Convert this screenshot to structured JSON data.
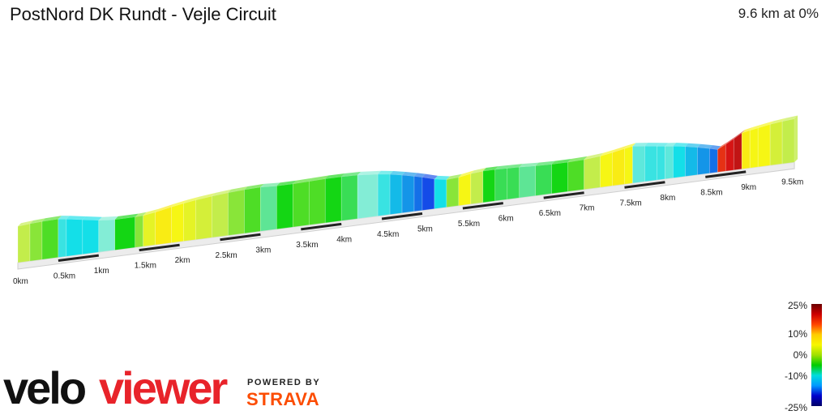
{
  "header": {
    "title": "PostNord DK Rundt - Vejle Circuit",
    "summary": "9.6 km at 0%"
  },
  "chart_data": {
    "type": "area",
    "title": "PostNord DK Rundt - Vejle Circuit",
    "x_unit": "km",
    "distance_km": 9.6,
    "avg_grade_pct": 0,
    "tick_labels": [
      "0km",
      "0.5km",
      "1km",
      "1.5km",
      "2km",
      "2.5km",
      "3km",
      "3.5km",
      "4km",
      "4.5km",
      "5km",
      "5.5km",
      "6km",
      "6.5km",
      "7km",
      "7.5km",
      "8km",
      "8.5km",
      "9km",
      "9.5km"
    ],
    "profile": {
      "x": [
        0,
        0.15,
        0.3,
        0.5,
        0.6,
        0.8,
        1.0,
        1.2,
        1.45,
        1.55,
        1.7,
        1.9,
        2.05,
        2.2,
        2.4,
        2.6,
        2.8,
        3.0,
        3.2,
        3.4,
        3.6,
        3.8,
        4.0,
        4.2,
        4.45,
        4.6,
        4.75,
        4.9,
        5.0,
        5.15,
        5.3,
        5.45,
        5.6,
        5.75,
        5.9,
        6.05,
        6.2,
        6.4,
        6.6,
        6.8,
        7.0,
        7.2,
        7.35,
        7.5,
        7.6,
        7.75,
        7.9,
        8.0,
        8.1,
        8.25,
        8.4,
        8.55,
        8.65,
        8.75,
        8.85,
        8.95,
        9.05,
        9.15,
        9.3,
        9.45,
        9.6
      ],
      "grade_pct": [
        3,
        3,
        2,
        1,
        -5,
        -6,
        -6,
        -3,
        0,
        2,
        5,
        7,
        6,
        5,
        4,
        3,
        2,
        1,
        -2,
        0,
        1,
        1,
        0,
        -1,
        -3,
        -5,
        -7,
        -8,
        -9,
        -10,
        -6,
        2,
        6,
        3,
        0,
        -1,
        -1,
        -2,
        -1,
        0,
        1,
        3,
        6,
        7,
        6,
        -4,
        -5,
        -5,
        -4,
        -6,
        -7,
        -8,
        -9,
        18,
        20,
        21,
        7,
        6,
        6,
        4,
        3
      ]
    },
    "legend": {
      "labels": [
        "25%",
        "10%",
        "0%",
        "-10%",
        "-25%"
      ],
      "colors": [
        "#6b0000",
        "#cc0000",
        "#ff4400",
        "#ffcc00",
        "#f7f700",
        "#a0e000",
        "#00cc00",
        "#00dddd",
        "#0099ff",
        "#0000cc",
        "#000066"
      ]
    }
  },
  "branding": {
    "logo_text_1": "velo",
    "logo_text_2": "viewer",
    "powered_by": "POWERED BY",
    "strava": "STRAVA"
  }
}
